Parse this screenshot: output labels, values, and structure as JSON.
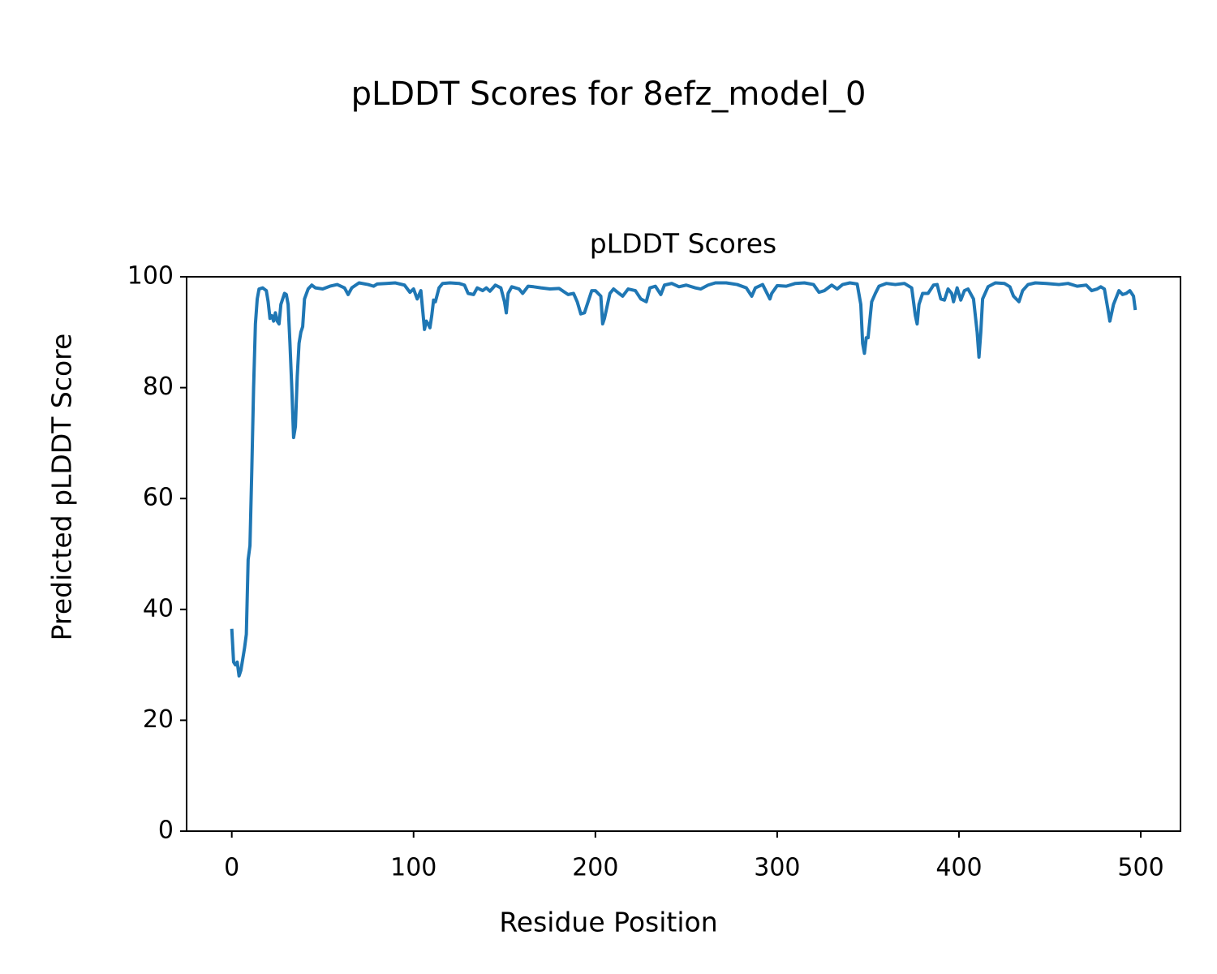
{
  "chart_data": {
    "type": "line",
    "suptitle": "pLDDT Scores for 8efz_model_0",
    "title": "pLDDT Scores",
    "xlabel": "Residue Position",
    "ylabel": "Predicted pLDDT Score",
    "xlim": [
      -24.85,
      521.85
    ],
    "xticks": [
      0,
      100,
      200,
      300,
      400,
      500
    ],
    "ylim": [
      0,
      100
    ],
    "yticks": [
      0,
      20,
      40,
      60,
      80,
      100
    ],
    "grid": false,
    "series": [
      {
        "name": "pLDDT",
        "color": "#1f77b4",
        "x": [
          0,
          1,
          2,
          3,
          4,
          5,
          6,
          7,
          8,
          9,
          10,
          11,
          12,
          13,
          14,
          15,
          17,
          19,
          20,
          21,
          22,
          23,
          24,
          25,
          26,
          27,
          29,
          30,
          31,
          32,
          33,
          34,
          35,
          36,
          37,
          38,
          39,
          40,
          42,
          44,
          46,
          50,
          54,
          58,
          62,
          64,
          66,
          70,
          75,
          78,
          80,
          85,
          90,
          95,
          98,
          100,
          102,
          104,
          105,
          106,
          107,
          108,
          109,
          110,
          111,
          112,
          114,
          116,
          120,
          125,
          128,
          130,
          133,
          135,
          138,
          140,
          142,
          145,
          148,
          150,
          151,
          152,
          154,
          158,
          160,
          163,
          166,
          170,
          175,
          180,
          185,
          188,
          190,
          192,
          194,
          196,
          198,
          200,
          203,
          204,
          205,
          206,
          208,
          210,
          213,
          215,
          218,
          222,
          225,
          228,
          230,
          233,
          236,
          238,
          242,
          246,
          250,
          255,
          258,
          262,
          266,
          272,
          278,
          283,
          286,
          288,
          292,
          296,
          297,
          300,
          305,
          310,
          315,
          320,
          323,
          326,
          330,
          333,
          336,
          340,
          344,
          346,
          347,
          348,
          349,
          350,
          352,
          354,
          356,
          360,
          365,
          370,
          374,
          376,
          377,
          378,
          380,
          383,
          386,
          388,
          390,
          392,
          394,
          396,
          397,
          399,
          401,
          403,
          405,
          408,
          410,
          411,
          412,
          413,
          416,
          420,
          425,
          428,
          430,
          433,
          435,
          438,
          442,
          448,
          455,
          460,
          465,
          470,
          473,
          476,
          478,
          480,
          482,
          483,
          485,
          488,
          490,
          492,
          494,
          496,
          497
        ],
        "values": [
          36.5,
          30.5,
          30,
          30.5,
          28,
          29,
          31,
          33,
          35.5,
          49,
          51.5,
          65,
          80,
          91.5,
          96,
          97.8,
          98,
          97.5,
          95.5,
          92.5,
          93,
          92,
          93.5,
          92,
          91.5,
          95,
          97,
          96.8,
          95,
          88,
          80,
          71,
          73,
          82,
          88,
          90,
          91,
          96,
          97.8,
          98.5,
          98,
          97.8,
          98.3,
          98.6,
          98,
          96.8,
          98,
          98.9,
          98.6,
          98.3,
          98.7,
          98.8,
          98.9,
          98.5,
          97.2,
          97.8,
          96,
          97.5,
          94,
          90.5,
          92,
          91.5,
          90.8,
          93,
          95.8,
          95.5,
          98,
          98.8,
          98.9,
          98.8,
          98.5,
          97,
          96.8,
          98,
          97.5,
          98,
          97.4,
          98.5,
          98,
          95.5,
          93.5,
          97,
          98.2,
          97.8,
          97,
          98.3,
          98.2,
          98,
          97.8,
          97.9,
          96.8,
          97,
          95.5,
          93.3,
          93.5,
          95.5,
          97.5,
          97.5,
          96.5,
          91.5,
          92.5,
          94,
          97,
          97.8,
          97,
          96.5,
          97.8,
          97.5,
          96,
          95.5,
          98,
          98.3,
          96.8,
          98.5,
          98.8,
          98.2,
          98.5,
          98,
          97.8,
          98.5,
          98.9,
          98.9,
          98.6,
          98,
          96.5,
          98,
          98.6,
          96,
          97,
          98.4,
          98.3,
          98.8,
          98.9,
          98.6,
          97.2,
          97.5,
          98.5,
          97.8,
          98.6,
          98.9,
          98.7,
          95,
          88,
          86.2,
          89,
          89,
          95.5,
          97,
          98.3,
          98.8,
          98.6,
          98.8,
          98,
          93,
          91.5,
          95,
          97,
          97,
          98.5,
          98.6,
          96,
          95.8,
          97.8,
          97,
          95.5,
          98,
          95.8,
          97.5,
          97.8,
          96,
          90,
          85.5,
          90,
          96,
          98.2,
          98.9,
          98.8,
          98.2,
          96.5,
          95.5,
          97.5,
          98.6,
          98.9,
          98.8,
          98.6,
          98.8,
          98.3,
          98.5,
          97.5,
          97.8,
          98.2,
          97.8,
          94,
          92,
          95,
          97.5,
          96.8,
          97,
          97.5,
          96.5,
          94
        ]
      }
    ]
  }
}
